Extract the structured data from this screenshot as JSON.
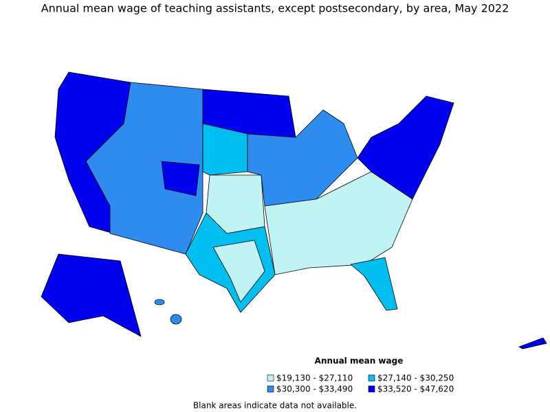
{
  "title": "Annual mean wage of teaching assistants, except postsecondary, by area, May 2022",
  "legend": {
    "title": "Annual mean wage",
    "items": [
      {
        "label": "$19,130 - $27,110",
        "color": "#c0f3f3"
      },
      {
        "label": "$27,140 - $30,250",
        "color": "#00bff0"
      },
      {
        "label": "$30,300 - $33,490",
        "color": "#2e8cf0"
      },
      {
        "label": "$33,520 - $47,620",
        "color": "#0000f0"
      }
    ]
  },
  "footnote": "Blank areas indicate data not available."
}
